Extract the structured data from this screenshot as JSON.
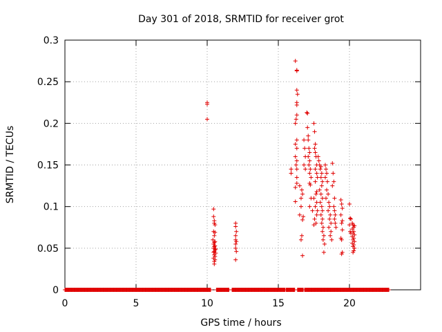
{
  "chart_data": {
    "type": "scatter",
    "title": "Day 301 of 2018, SRMTID for receiver grot",
    "xlabel": "GPS time / hours",
    "ylabel": "SRMTID / TECUs",
    "xlim": [
      0,
      25
    ],
    "ylim": [
      0,
      0.3
    ],
    "x_ticks": [
      0,
      5,
      10,
      15,
      20
    ],
    "y_ticks": [
      0,
      0.05,
      0.1,
      0.15,
      0.2,
      0.25,
      0.3
    ],
    "x_tick_labels": [
      "0",
      "5",
      "10",
      "15",
      "20"
    ],
    "y_tick_labels": [
      "0",
      "0.05",
      "0.1",
      "0.15",
      "0.2",
      "0.25",
      "0.3"
    ],
    "grid": true,
    "marker": "plus",
    "color": "#e00000",
    "series": [
      {
        "name": "SRMTID",
        "points": [
          [
            10.0,
            0.225
          ],
          [
            10.0,
            0.223
          ],
          [
            10.0,
            0.205
          ],
          [
            10.45,
            0.097
          ],
          [
            10.45,
            0.088
          ],
          [
            10.5,
            0.083
          ],
          [
            10.5,
            0.08
          ],
          [
            10.55,
            0.078
          ],
          [
            10.45,
            0.07
          ],
          [
            10.55,
            0.069
          ],
          [
            10.5,
            0.065
          ],
          [
            10.4,
            0.06
          ],
          [
            10.55,
            0.058
          ],
          [
            10.5,
            0.057
          ],
          [
            10.45,
            0.055
          ],
          [
            10.55,
            0.053
          ],
          [
            10.5,
            0.052
          ],
          [
            10.45,
            0.05
          ],
          [
            10.6,
            0.049
          ],
          [
            10.55,
            0.048
          ],
          [
            10.5,
            0.046
          ],
          [
            10.45,
            0.045
          ],
          [
            10.6,
            0.044
          ],
          [
            10.5,
            0.042
          ],
          [
            10.55,
            0.04
          ],
          [
            10.45,
            0.038
          ],
          [
            10.55,
            0.036
          ],
          [
            10.5,
            0.034
          ],
          [
            10.5,
            0.031
          ],
          [
            12.0,
            0.08
          ],
          [
            12.0,
            0.076
          ],
          [
            12.05,
            0.07
          ],
          [
            12.0,
            0.065
          ],
          [
            12.0,
            0.06
          ],
          [
            12.05,
            0.058
          ],
          [
            12.0,
            0.055
          ],
          [
            12.0,
            0.05
          ],
          [
            12.05,
            0.046
          ],
          [
            12.0,
            0.036
          ],
          [
            15.9,
            0.145
          ],
          [
            15.9,
            0.14
          ],
          [
            16.2,
            0.275
          ],
          [
            16.3,
            0.264
          ],
          [
            16.3,
            0.263
          ],
          [
            16.3,
            0.24
          ],
          [
            16.35,
            0.235
          ],
          [
            16.3,
            0.225
          ],
          [
            16.3,
            0.222
          ],
          [
            16.3,
            0.21
          ],
          [
            16.25,
            0.205
          ],
          [
            16.2,
            0.2
          ],
          [
            16.3,
            0.18
          ],
          [
            16.2,
            0.175
          ],
          [
            16.3,
            0.17
          ],
          [
            16.2,
            0.16
          ],
          [
            16.3,
            0.155
          ],
          [
            16.25,
            0.15
          ],
          [
            16.3,
            0.145
          ],
          [
            16.3,
            0.135
          ],
          [
            16.3,
            0.128
          ],
          [
            16.2,
            0.123
          ],
          [
            16.2,
            0.106
          ],
          [
            16.5,
            0.09
          ],
          [
            16.6,
            0.1
          ],
          [
            16.6,
            0.11
          ],
          [
            16.7,
            0.115
          ],
          [
            16.65,
            0.12
          ],
          [
            16.5,
            0.125
          ],
          [
            16.7,
            0.084
          ],
          [
            16.75,
            0.088
          ],
          [
            16.6,
            0.06
          ],
          [
            16.65,
            0.065
          ],
          [
            16.7,
            0.041
          ],
          [
            16.8,
            0.18
          ],
          [
            16.85,
            0.17
          ],
          [
            16.9,
            0.16
          ],
          [
            16.8,
            0.15
          ],
          [
            16.9,
            0.145
          ],
          [
            17.0,
            0.213
          ],
          [
            17.05,
            0.212
          ],
          [
            17.05,
            0.195
          ],
          [
            17.1,
            0.185
          ],
          [
            17.1,
            0.18
          ],
          [
            17.15,
            0.17
          ],
          [
            17.2,
            0.165
          ],
          [
            17.1,
            0.16
          ],
          [
            17.2,
            0.155
          ],
          [
            17.15,
            0.15
          ],
          [
            17.25,
            0.145
          ],
          [
            17.2,
            0.14
          ],
          [
            17.3,
            0.135
          ],
          [
            17.2,
            0.128
          ],
          [
            17.25,
            0.126
          ],
          [
            17.3,
            0.11
          ],
          [
            17.2,
            0.1
          ],
          [
            17.4,
            0.095
          ],
          [
            17.5,
            0.2
          ],
          [
            17.55,
            0.19
          ],
          [
            17.6,
            0.175
          ],
          [
            17.55,
            0.17
          ],
          [
            17.6,
            0.165
          ],
          [
            17.65,
            0.16
          ],
          [
            17.7,
            0.15
          ],
          [
            17.6,
            0.145
          ],
          [
            17.7,
            0.14
          ],
          [
            17.75,
            0.135
          ],
          [
            17.6,
            0.13
          ],
          [
            17.7,
            0.118
          ],
          [
            17.65,
            0.115
          ],
          [
            17.5,
            0.11
          ],
          [
            17.7,
            0.105
          ],
          [
            17.6,
            0.1
          ],
          [
            17.75,
            0.095
          ],
          [
            17.7,
            0.09
          ],
          [
            17.55,
            0.085
          ],
          [
            17.65,
            0.08
          ],
          [
            17.5,
            0.078
          ],
          [
            17.8,
            0.16
          ],
          [
            17.85,
            0.155
          ],
          [
            17.9,
            0.15
          ],
          [
            17.95,
            0.145
          ],
          [
            18.0,
            0.148
          ],
          [
            18.05,
            0.14
          ],
          [
            18.0,
            0.135
          ],
          [
            18.1,
            0.13
          ],
          [
            18.05,
            0.125
          ],
          [
            17.9,
            0.12
          ],
          [
            18.0,
            0.115
          ],
          [
            18.1,
            0.11
          ],
          [
            17.95,
            0.105
          ],
          [
            18.05,
            0.1
          ],
          [
            18.1,
            0.095
          ],
          [
            18.0,
            0.09
          ],
          [
            18.1,
            0.085
          ],
          [
            18.05,
            0.08
          ],
          [
            18.15,
            0.075
          ],
          [
            18.1,
            0.07
          ],
          [
            18.2,
            0.065
          ],
          [
            18.15,
            0.06
          ],
          [
            18.25,
            0.055
          ],
          [
            18.2,
            0.045
          ],
          [
            18.3,
            0.15
          ],
          [
            18.35,
            0.145
          ],
          [
            18.4,
            0.14
          ],
          [
            18.3,
            0.135
          ],
          [
            18.45,
            0.13
          ],
          [
            18.4,
            0.12
          ],
          [
            18.5,
            0.115
          ],
          [
            18.35,
            0.11
          ],
          [
            18.55,
            0.105
          ],
          [
            18.6,
            0.1
          ],
          [
            18.5,
            0.095
          ],
          [
            18.65,
            0.09
          ],
          [
            18.6,
            0.085
          ],
          [
            18.7,
            0.08
          ],
          [
            18.55,
            0.075
          ],
          [
            18.7,
            0.07
          ],
          [
            18.65,
            0.065
          ],
          [
            18.75,
            0.06
          ],
          [
            18.8,
            0.152
          ],
          [
            18.85,
            0.14
          ],
          [
            18.9,
            0.13
          ],
          [
            18.8,
            0.125
          ],
          [
            18.95,
            0.11
          ],
          [
            18.9,
            0.1
          ],
          [
            18.95,
            0.095
          ],
          [
            19.0,
            0.09
          ],
          [
            18.95,
            0.085
          ],
          [
            19.0,
            0.08
          ],
          [
            19.05,
            0.075
          ],
          [
            19.4,
            0.108
          ],
          [
            19.45,
            0.103
          ],
          [
            19.5,
            0.098
          ],
          [
            19.4,
            0.09
          ],
          [
            19.5,
            0.083
          ],
          [
            19.45,
            0.08
          ],
          [
            19.5,
            0.072
          ],
          [
            19.4,
            0.062
          ],
          [
            19.45,
            0.06
          ],
          [
            19.5,
            0.045
          ],
          [
            19.45,
            0.043
          ],
          [
            20.0,
            0.103
          ],
          [
            20.05,
            0.086
          ],
          [
            20.1,
            0.085
          ],
          [
            20.0,
            0.078
          ],
          [
            20.05,
            0.07
          ],
          [
            20.1,
            0.068
          ],
          [
            20.2,
            0.08
          ],
          [
            20.25,
            0.078
          ],
          [
            20.3,
            0.075
          ],
          [
            20.35,
            0.077
          ],
          [
            20.2,
            0.073
          ],
          [
            20.3,
            0.07
          ],
          [
            20.25,
            0.068
          ],
          [
            20.35,
            0.066
          ],
          [
            20.2,
            0.064
          ],
          [
            20.3,
            0.062
          ],
          [
            20.25,
            0.06
          ],
          [
            20.35,
            0.058
          ],
          [
            20.2,
            0.056
          ],
          [
            20.3,
            0.054
          ],
          [
            20.25,
            0.052
          ],
          [
            20.35,
            0.05
          ],
          [
            20.3,
            0.047
          ],
          [
            20.25,
            0.045
          ]
        ]
      }
    ],
    "zero_ranges_hours": [
      [
        0.0,
        10.25
      ],
      [
        10.65,
        11.55
      ],
      [
        11.75,
        15.5
      ],
      [
        15.55,
        16.15
      ],
      [
        16.35,
        16.75
      ],
      [
        16.85,
        22.8
      ]
    ]
  }
}
